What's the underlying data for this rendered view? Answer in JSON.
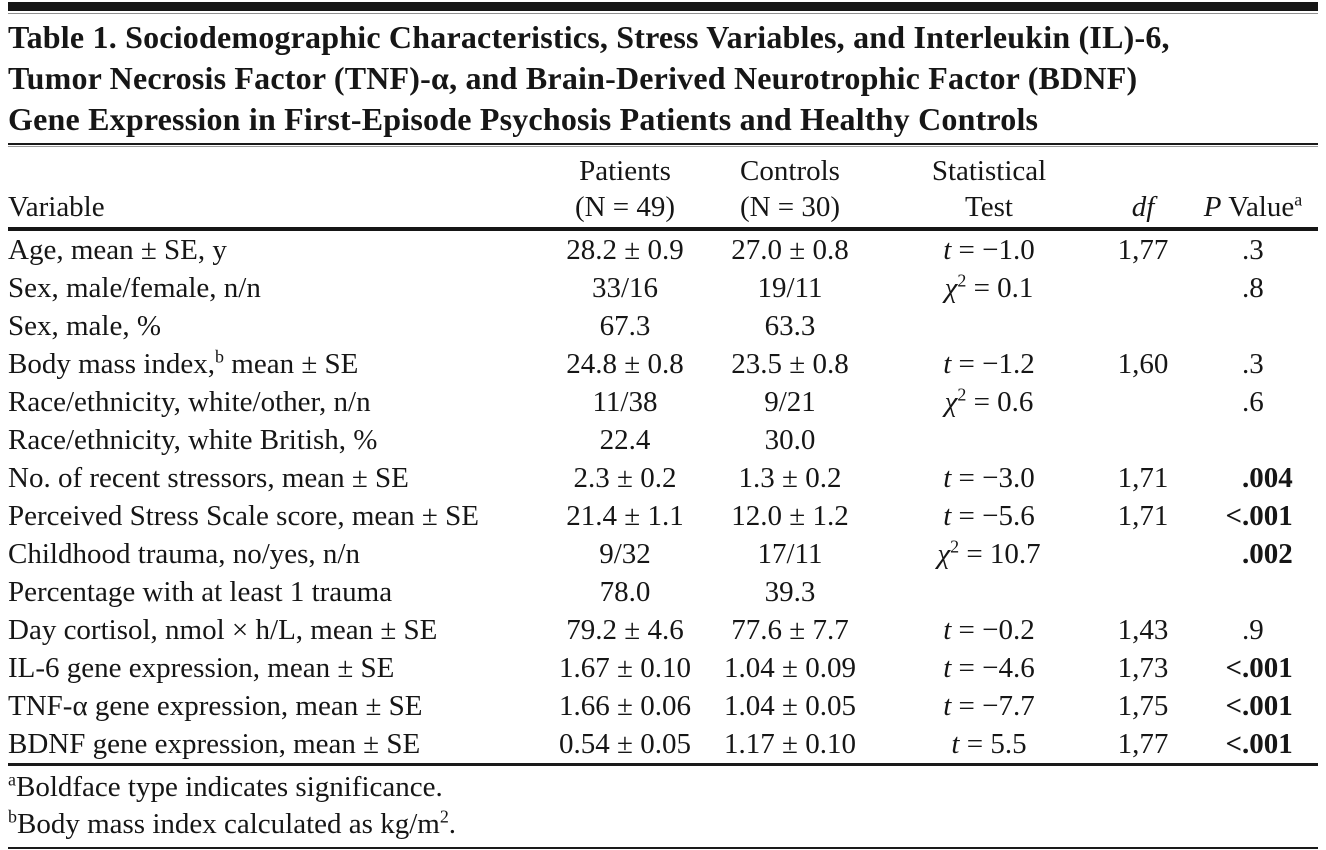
{
  "table_label": "Table 1",
  "title_lines": [
    "Table 1. Sociodemographic Characteristics, Stress Variables, and Interleukin (IL)-6,",
    "Tumor Necrosis Factor (TNF)-α, and Brain-Derived Neurotrophic Factor (BDNF)",
    "Gene Expression in First-Episode Psychosis Patients and Healthy Controls"
  ],
  "header": {
    "variable": "Variable",
    "patients_line1": "Patients",
    "patients_line2": "(N = 49)",
    "controls_line1": "Controls",
    "controls_line2": "(N = 30)",
    "stat_line1": "Statistical",
    "stat_line2": "Test",
    "df": "df",
    "p_symbol": "P",
    "p_rest": " Value",
    "p_sup": "a"
  },
  "rows": [
    {
      "var_pre": "Age, mean ± SE, y",
      "var_sup": "",
      "var_post": "",
      "patients": "28.2 ± 0.9",
      "controls": "27.0 ± 0.8",
      "test_sym": "t",
      "test_sup": "",
      "test_rest": " = −1.0",
      "df": "1,77",
      "p_prefix": "",
      "p_value": ".3",
      "p_bold": false
    },
    {
      "var_pre": "Sex, male/female, n/n",
      "var_sup": "",
      "var_post": "",
      "patients": "33/16",
      "controls": "19/11",
      "test_sym": "χ",
      "test_sup": "2",
      "test_rest": " = 0.1",
      "df": "",
      "p_prefix": "",
      "p_value": ".8",
      "p_bold": false
    },
    {
      "var_pre": "Sex, male, %",
      "var_sup": "",
      "var_post": "",
      "patients": "67.3",
      "controls": "63.3",
      "test_sym": "",
      "test_sup": "",
      "test_rest": "",
      "df": "",
      "p_prefix": "",
      "p_value": "",
      "p_bold": false
    },
    {
      "var_pre": "Body mass index,",
      "var_sup": "b",
      "var_post": " mean ± SE",
      "patients": "24.8 ± 0.8",
      "controls": "23.5 ± 0.8",
      "test_sym": "t",
      "test_sup": "",
      "test_rest": " = −1.2",
      "df": "1,60",
      "p_prefix": "",
      "p_value": ".3",
      "p_bold": false
    },
    {
      "var_pre": "Race/ethnicity, white/other, n/n",
      "var_sup": "",
      "var_post": "",
      "patients": "11/38",
      "controls": "9/21",
      "test_sym": "χ",
      "test_sup": "2",
      "test_rest": " = 0.6",
      "df": "",
      "p_prefix": "",
      "p_value": ".6",
      "p_bold": false
    },
    {
      "var_pre": "Race/ethnicity, white British, %",
      "var_sup": "",
      "var_post": "",
      "patients": "22.4",
      "controls": "30.0",
      "test_sym": "",
      "test_sup": "",
      "test_rest": "",
      "df": "",
      "p_prefix": "",
      "p_value": "",
      "p_bold": false
    },
    {
      "var_pre": "No. of recent stressors, mean ± SE",
      "var_sup": "",
      "var_post": "",
      "patients": "2.3 ± 0.2",
      "controls": "1.3 ± 0.2",
      "test_sym": "t",
      "test_sup": "",
      "test_rest": " = −3.0",
      "df": "1,71",
      "p_prefix": "",
      "p_value": ".004",
      "p_bold": true
    },
    {
      "var_pre": "Perceived Stress Scale score, mean ± SE",
      "var_sup": "",
      "var_post": "",
      "patients": "21.4 ± 1.1",
      "controls": "12.0 ± 1.2",
      "test_sym": "t",
      "test_sup": "",
      "test_rest": " = −5.6",
      "df": "1,71",
      "p_prefix": "<",
      "p_value": ".001",
      "p_bold": true
    },
    {
      "var_pre": "Childhood trauma, no/yes, n/n",
      "var_sup": "",
      "var_post": "",
      "patients": "9/32",
      "controls": "17/11",
      "test_sym": "χ",
      "test_sup": "2",
      "test_rest": " = 10.7",
      "df": "",
      "p_prefix": "",
      "p_value": ".002",
      "p_bold": true
    },
    {
      "var_pre": "Percentage with at least 1 trauma",
      "var_sup": "",
      "var_post": "",
      "patients": "78.0",
      "controls": "39.3",
      "test_sym": "",
      "test_sup": "",
      "test_rest": "",
      "df": "",
      "p_prefix": "",
      "p_value": "",
      "p_bold": false
    },
    {
      "var_pre": "Day cortisol, nmol × h/L, mean ± SE",
      "var_sup": "",
      "var_post": "",
      "patients": "79.2 ± 4.6",
      "controls": "77.6 ± 7.7",
      "test_sym": "t",
      "test_sup": "",
      "test_rest": " = −0.2",
      "df": "1,43",
      "p_prefix": "",
      "p_value": ".9",
      "p_bold": false
    },
    {
      "var_pre": "IL-6 gene expression, mean ± SE",
      "var_sup": "",
      "var_post": "",
      "patients": "1.67 ± 0.10",
      "controls": "1.04 ± 0.09",
      "test_sym": "t",
      "test_sup": "",
      "test_rest": " = −4.6",
      "df": "1,73",
      "p_prefix": "<",
      "p_value": ".001",
      "p_bold": true
    },
    {
      "var_pre": "TNF-α gene expression, mean ± SE",
      "var_sup": "",
      "var_post": "",
      "patients": "1.66 ± 0.06",
      "controls": "1.04 ± 0.05",
      "test_sym": "t",
      "test_sup": "",
      "test_rest": " = −7.7",
      "df": "1,75",
      "p_prefix": "<",
      "p_value": ".001",
      "p_bold": true
    },
    {
      "var_pre": "BDNF gene expression, mean ± SE",
      "var_sup": "",
      "var_post": "",
      "patients": "0.54 ± 0.05",
      "controls": "1.17 ± 0.10",
      "test_sym": "t",
      "test_sup": "",
      "test_rest": " = 5.5",
      "df": "1,77",
      "p_prefix": "<",
      "p_value": ".001",
      "p_bold": true
    }
  ],
  "footnotes": [
    {
      "marker": "a",
      "text_pre": "Boldface type indicates significance.",
      "sup": "",
      "text_post": ""
    },
    {
      "marker": "b",
      "text_pre": "Body mass index calculated as kg/m",
      "sup": "2",
      "text_post": "."
    }
  ]
}
